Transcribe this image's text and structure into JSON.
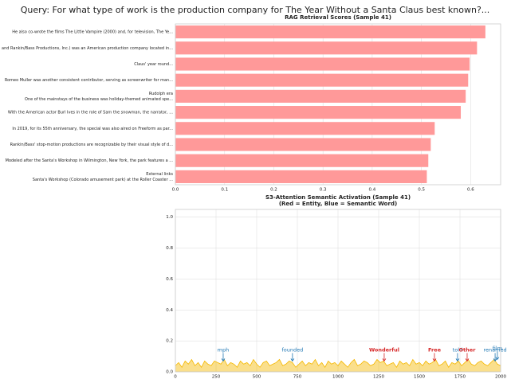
{
  "title": "Query: For what type of work is the production company for The Year Without a Santa Claus best known?...",
  "chart_data": [
    {
      "type": "barh",
      "title": "RAG Retrieval Scores (Sample 41)",
      "categories": [
        "He also co-wrote the films The Little Vampire (2000) and, for television, The Ye...",
        "and Rankin/Bass Productions, Inc.) was an American production company located in...",
        "Claus' year round...",
        "Romeo Muller was another consistent contributor, serving as screenwriter for man...",
        [
          "Rudolph era",
          "One of the mainstays of the business was holiday-themed animated spe..."
        ],
        "With the American actor Burl Ives in the role of Sam the snowman, the narrator, ...",
        "In 2019, for its 55th anniversary, the special was also aired on Freeform as par...",
        "Rankin/Bass' stop-motion productions are recognizable by their visual style of d...",
        "Modeled after the Santa's Workshop in Wilmington, New York, the park features a ...",
        [
          "External links",
          "Santa's Workshop (Colorado amusement park) at the Roller Coaster ..."
        ]
      ],
      "values": [
        0.63,
        0.613,
        0.598,
        0.595,
        0.59,
        0.58,
        0.527,
        0.519,
        0.514,
        0.511
      ],
      "color": "#ff9999",
      "xlim": [
        0,
        0.661
      ],
      "xticks": [
        {
          "value": 0,
          "label": "0.0"
        },
        0.1,
        0.2,
        0.3,
        0.4,
        0.5,
        0.6
      ],
      "grid": true
    },
    {
      "type": "area",
      "title": "S3-Attention Semantic Activation (Sample 41)",
      "subtitle": "(Red = Entity, Blue = Semantic Word)",
      "x": [
        0,
        20,
        40,
        60,
        80,
        100,
        120,
        140,
        160,
        180,
        200,
        220,
        240,
        260,
        280,
        300,
        320,
        340,
        360,
        380,
        400,
        420,
        440,
        460,
        480,
        500,
        520,
        540,
        560,
        580,
        600,
        620,
        640,
        660,
        680,
        700,
        720,
        740,
        760,
        780,
        800,
        820,
        840,
        860,
        880,
        900,
        920,
        940,
        960,
        980,
        1000,
        1020,
        1040,
        1060,
        1080,
        1100,
        1120,
        1140,
        1160,
        1180,
        1200,
        1220,
        1240,
        1260,
        1280,
        1300,
        1320,
        1340,
        1360,
        1380,
        1400,
        1420,
        1440,
        1460,
        1480,
        1500,
        1520,
        1540,
        1560,
        1580,
        1600,
        1620,
        1640,
        1660,
        1680,
        1700,
        1720,
        1740,
        1760,
        1780,
        1800,
        1820,
        1840,
        1860,
        1880,
        1900,
        1920,
        1940,
        1960,
        1980,
        2000
      ],
      "values": [
        0.04,
        0.06,
        0.03,
        0.07,
        0.05,
        0.08,
        0.04,
        0.06,
        0.03,
        0.07,
        0.05,
        0.04,
        0.07,
        0.06,
        0.05,
        0.08,
        0.04,
        0.06,
        0.05,
        0.03,
        0.07,
        0.05,
        0.06,
        0.04,
        0.08,
        0.05,
        0.03,
        0.06,
        0.07,
        0.04,
        0.05,
        0.06,
        0.08,
        0.04,
        0.05,
        0.07,
        0.06,
        0.03,
        0.05,
        0.07,
        0.04,
        0.06,
        0.05,
        0.08,
        0.04,
        0.06,
        0.03,
        0.07,
        0.05,
        0.06,
        0.04,
        0.07,
        0.05,
        0.03,
        0.06,
        0.08,
        0.04,
        0.05,
        0.07,
        0.06,
        0.04,
        0.05,
        0.08,
        0.06,
        0.07,
        0.04,
        0.05,
        0.06,
        0.03,
        0.07,
        0.05,
        0.06,
        0.04,
        0.08,
        0.05,
        0.06,
        0.04,
        0.07,
        0.05,
        0.06,
        0.08,
        0.04,
        0.05,
        0.07,
        0.03,
        0.06,
        0.05,
        0.07,
        0.04,
        0.06,
        0.08,
        0.05,
        0.04,
        0.06,
        0.07,
        0.05,
        0.04,
        0.06,
        0.08,
        0.05,
        0.04
      ],
      "color": "#f5b800",
      "xlim": [
        0,
        2000
      ],
      "xticks": [
        0,
        250,
        500,
        750,
        1000,
        1250,
        1500,
        1750,
        2000
      ],
      "ylim": [
        0,
        1.05
      ],
      "yticks": [
        {
          "value": 0,
          "label": "0.0"
        },
        0.2,
        0.4,
        0.6,
        0.8,
        {
          "value": 1,
          "label": "1.0"
        }
      ],
      "grid": true,
      "annotations": [
        {
          "text": "mph",
          "x": 294,
          "y": 0.07,
          "color": "#1f77b4"
        },
        {
          "text": "founded",
          "x": 720,
          "y": 0.07,
          "color": "#1f77b4"
        },
        {
          "text": "Wonderful",
          "x": 1284,
          "y": 0.07,
          "color": "#d62728"
        },
        {
          "text": "Free",
          "x": 1593,
          "y": 0.07,
          "color": "#d62728"
        },
        {
          "text": "told",
          "x": 1735,
          "y": 0.07,
          "color": "#1f77b4"
        },
        {
          "text": "Other",
          "x": 1794,
          "y": 0.07,
          "color": "#d62728"
        },
        {
          "text": "renamed",
          "x": 1966,
          "y": 0.07,
          "color": "#1f77b4"
        },
        {
          "text": "film",
          "x": 1980,
          "y": 0.08,
          "color": "#1f77b4"
        }
      ]
    }
  ]
}
